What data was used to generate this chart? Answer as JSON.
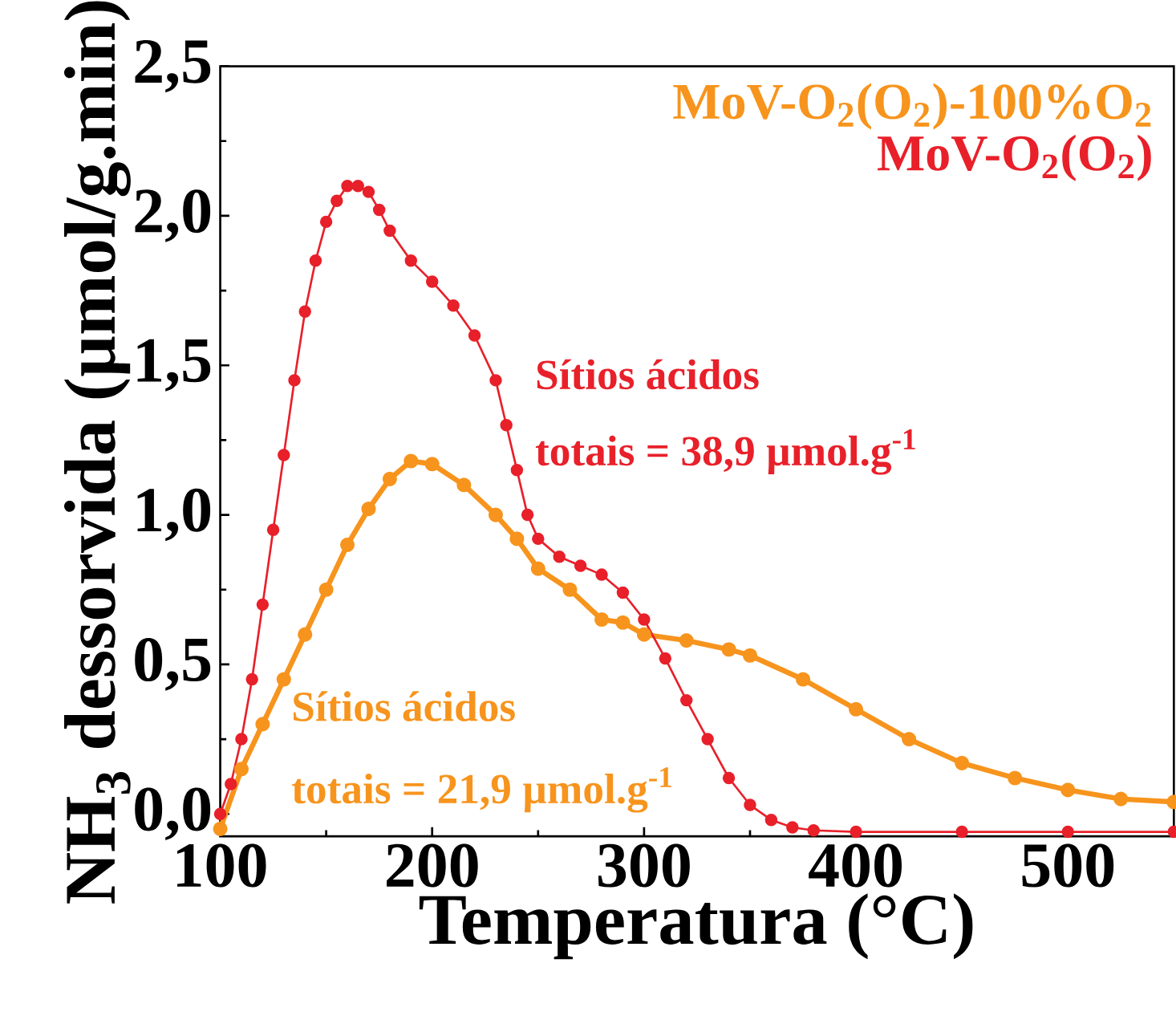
{
  "chart_data": {
    "type": "line",
    "xlabel": "Temperatura (°C)",
    "ylabel": "NH$_{3}$ dessorvida (µmol/g.min)",
    "xlim": [
      100,
      550
    ],
    "ylim": [
      -0.075,
      2.5
    ],
    "xticks": [
      100,
      200,
      300,
      400,
      500
    ],
    "yticks": [
      {
        "value": 0,
        "label": "0,0"
      },
      {
        "value": 0.5,
        "label": "0,5"
      },
      {
        "value": 1,
        "label": "1,0"
      },
      {
        "value": 1.5,
        "label": "1,5"
      },
      {
        "value": 2,
        "label": "2,0"
      },
      {
        "value": 2.5,
        "label": "2,5"
      }
    ],
    "legend": "top right",
    "marker": "circle",
    "grid": false,
    "annotations": [
      "Sítios ácidos",
      "totais = 38,9 µmol.g$^{-1}$",
      "Sítios ácidos",
      "totais = 21,9 µmol.g$^{-1}$"
    ],
    "series": [
      {
        "name": "MoV-O$_{2}$(O$_{2}$)-100%O$_{2}$",
        "color": "#f7941d",
        "x": [
          100,
          110,
          120,
          130,
          140,
          150,
          160,
          170,
          180,
          190,
          200,
          215,
          230,
          240,
          250,
          265,
          280,
          290,
          300,
          320,
          340,
          350,
          375,
          400,
          425,
          450,
          475,
          500,
          525,
          550
        ],
        "values": [
          -0.05,
          0.15,
          0.3,
          0.45,
          0.6,
          0.75,
          0.9,
          1.02,
          1.12,
          1.18,
          1.17,
          1.1,
          1.0,
          0.92,
          0.82,
          0.75,
          0.65,
          0.64,
          0.6,
          0.58,
          0.55,
          0.53,
          0.45,
          0.35,
          0.25,
          0.17,
          0.12,
          0.08,
          0.05,
          0.04
        ]
      },
      {
        "name": "MoV-O$_{2}$(O$_{2}$)",
        "color": "#e8202a",
        "x": [
          100,
          105,
          110,
          115,
          120,
          125,
          130,
          135,
          140,
          145,
          150,
          155,
          160,
          165,
          170,
          175,
          180,
          190,
          200,
          210,
          220,
          230,
          235,
          240,
          245,
          250,
          260,
          270,
          280,
          290,
          300,
          310,
          320,
          330,
          340,
          350,
          360,
          370,
          380,
          400,
          450,
          500,
          550
        ],
        "values": [
          0.0,
          0.1,
          0.25,
          0.45,
          0.7,
          0.95,
          1.2,
          1.45,
          1.68,
          1.85,
          1.98,
          2.05,
          2.1,
          2.1,
          2.08,
          2.02,
          1.95,
          1.85,
          1.78,
          1.7,
          1.6,
          1.45,
          1.3,
          1.15,
          1.0,
          0.92,
          0.86,
          0.83,
          0.8,
          0.74,
          0.65,
          0.52,
          0.38,
          0.25,
          0.12,
          0.03,
          -0.02,
          -0.045,
          -0.055,
          -0.06,
          -0.06,
          -0.06,
          -0.06
        ]
      }
    ]
  }
}
